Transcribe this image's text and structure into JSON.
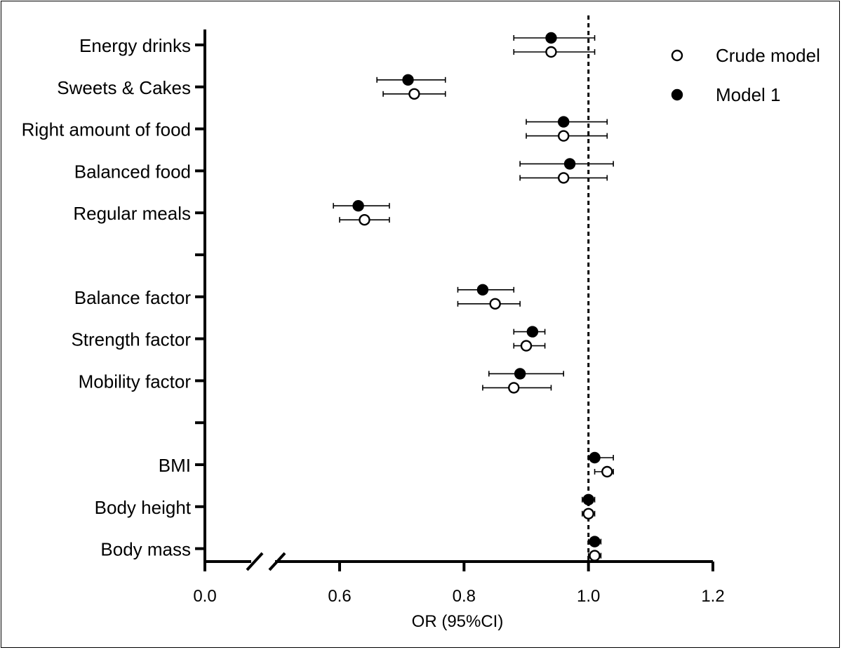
{
  "chart_data": {
    "type": "scatter",
    "subtype": "forest-plot",
    "title": "",
    "xlabel": "OR (95%CI)",
    "ylabel": "",
    "xlim": [
      0.0,
      1.2
    ],
    "axis_break": "between 0.0 and 0.6",
    "x_ticks": [
      {
        "value": 0.0,
        "label": "0.0"
      },
      {
        "value": 0.6,
        "label": "0.6"
      },
      {
        "value": 0.8,
        "label": "0.8"
      },
      {
        "value": 1.0,
        "label": "1.0"
      },
      {
        "value": 1.2,
        "label": "1.2"
      }
    ],
    "reference_line": 1.0,
    "categories": [
      "Energy drinks",
      "Sweets & Cakes",
      "Right amount of food",
      "Balanced food",
      "Regular meals",
      "",
      "Balance factor",
      "Strength factor",
      "Mobility factor",
      "",
      "BMI",
      "Body height",
      "Body mass"
    ],
    "legend_position": "top-right",
    "series": [
      {
        "name": "Crude model",
        "marker": "open-circle",
        "points": [
          {
            "category": "Energy drinks",
            "or": 0.94,
            "lo": 0.88,
            "hi": 1.01
          },
          {
            "category": "Sweets & Cakes",
            "or": 0.72,
            "lo": 0.67,
            "hi": 0.77
          },
          {
            "category": "Right amount of food",
            "or": 0.96,
            "lo": 0.9,
            "hi": 1.03
          },
          {
            "category": "Balanced food",
            "or": 0.96,
            "lo": 0.89,
            "hi": 1.03
          },
          {
            "category": "Regular meals",
            "or": 0.64,
            "lo": 0.6,
            "hi": 0.68
          },
          {
            "category": "Balance factor",
            "or": 0.85,
            "lo": 0.79,
            "hi": 0.89
          },
          {
            "category": "Strength factor",
            "or": 0.9,
            "lo": 0.88,
            "hi": 0.93
          },
          {
            "category": "Mobility factor",
            "or": 0.88,
            "lo": 0.83,
            "hi": 0.94
          },
          {
            "category": "BMI",
            "or": 1.03,
            "lo": 1.01,
            "hi": 1.04
          },
          {
            "category": "Body height",
            "or": 1.0,
            "lo": 0.99,
            "hi": 1.01
          },
          {
            "category": "Body mass",
            "or": 1.01,
            "lo": 1.0,
            "hi": 1.02
          }
        ]
      },
      {
        "name": "Model 1",
        "marker": "filled-circle",
        "points": [
          {
            "category": "Energy drinks",
            "or": 0.94,
            "lo": 0.88,
            "hi": 1.01
          },
          {
            "category": "Sweets & Cakes",
            "or": 0.71,
            "lo": 0.66,
            "hi": 0.77
          },
          {
            "category": "Right amount of food",
            "or": 0.96,
            "lo": 0.9,
            "hi": 1.03
          },
          {
            "category": "Balanced food",
            "or": 0.97,
            "lo": 0.89,
            "hi": 1.04
          },
          {
            "category": "Regular meals",
            "or": 0.63,
            "lo": 0.59,
            "hi": 0.68
          },
          {
            "category": "Balance factor",
            "or": 0.83,
            "lo": 0.79,
            "hi": 0.88
          },
          {
            "category": "Strength factor",
            "or": 0.91,
            "lo": 0.88,
            "hi": 0.93
          },
          {
            "category": "Mobility factor",
            "or": 0.89,
            "lo": 0.84,
            "hi": 0.96
          },
          {
            "category": "BMI",
            "or": 1.01,
            "lo": 1.0,
            "hi": 1.04
          },
          {
            "category": "Body height",
            "or": 1.0,
            "lo": 0.99,
            "hi": 1.01
          },
          {
            "category": "Body mass",
            "or": 1.01,
            "lo": 1.0,
            "hi": 1.02
          }
        ]
      }
    ]
  }
}
